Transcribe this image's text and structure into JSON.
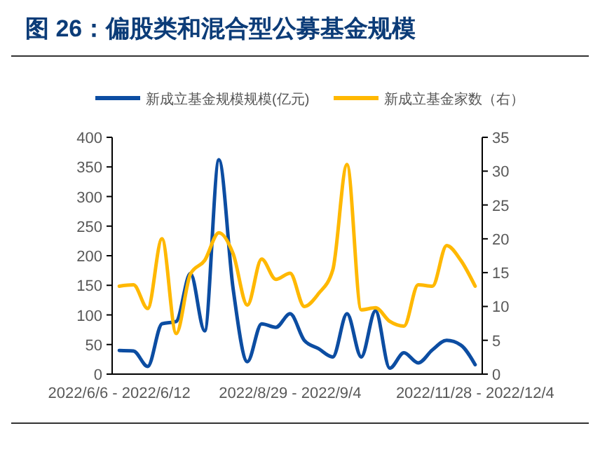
{
  "chart_data": {
    "type": "line",
    "title": "图 26：偏股类和混合型公募基金规模",
    "categories": [
      "2022/6/6 - 2022/6/12",
      null,
      null,
      null,
      null,
      null,
      null,
      null,
      null,
      null,
      null,
      null,
      "2022/8/29 - 2022/9/4",
      null,
      null,
      null,
      null,
      null,
      null,
      null,
      null,
      null,
      null,
      null,
      null,
      "2022/11/28 - 2022/12/4"
    ],
    "series": [
      {
        "name": "新成立基金规模规模(亿元)",
        "color": "#0c4da2",
        "values": [
          40,
          39,
          13,
          85,
          89,
          170,
          73,
          362,
          144,
          21,
          85,
          79,
          102,
          57,
          43,
          29,
          102,
          29,
          107,
          10,
          36,
          19,
          41,
          57,
          49,
          16
        ]
      },
      {
        "name": "新成立基金家数（右）",
        "color": "#ffb800",
        "axis": "y2",
        "values": [
          13.0,
          13.2,
          9.7,
          20.0,
          6.0,
          14.8,
          16.8,
          20.9,
          17.8,
          10.2,
          17.0,
          14.0,
          14.9,
          10.0,
          11.9,
          15.4,
          31.0,
          9.5,
          9.8,
          7.8,
          7.1,
          13.2,
          13.0,
          19.0,
          16.8,
          13.0
        ]
      }
    ],
    "ylim": [
      0,
      400
    ],
    "yticks": [
      0,
      50,
      100,
      150,
      200,
      250,
      300,
      350,
      400
    ],
    "y2lim": [
      0,
      35
    ],
    "y2ticks": [
      0,
      5,
      10,
      15,
      20,
      25,
      30,
      35
    ],
    "legend": "top",
    "grid": false,
    "marker": "none",
    "line_style": "solid"
  }
}
